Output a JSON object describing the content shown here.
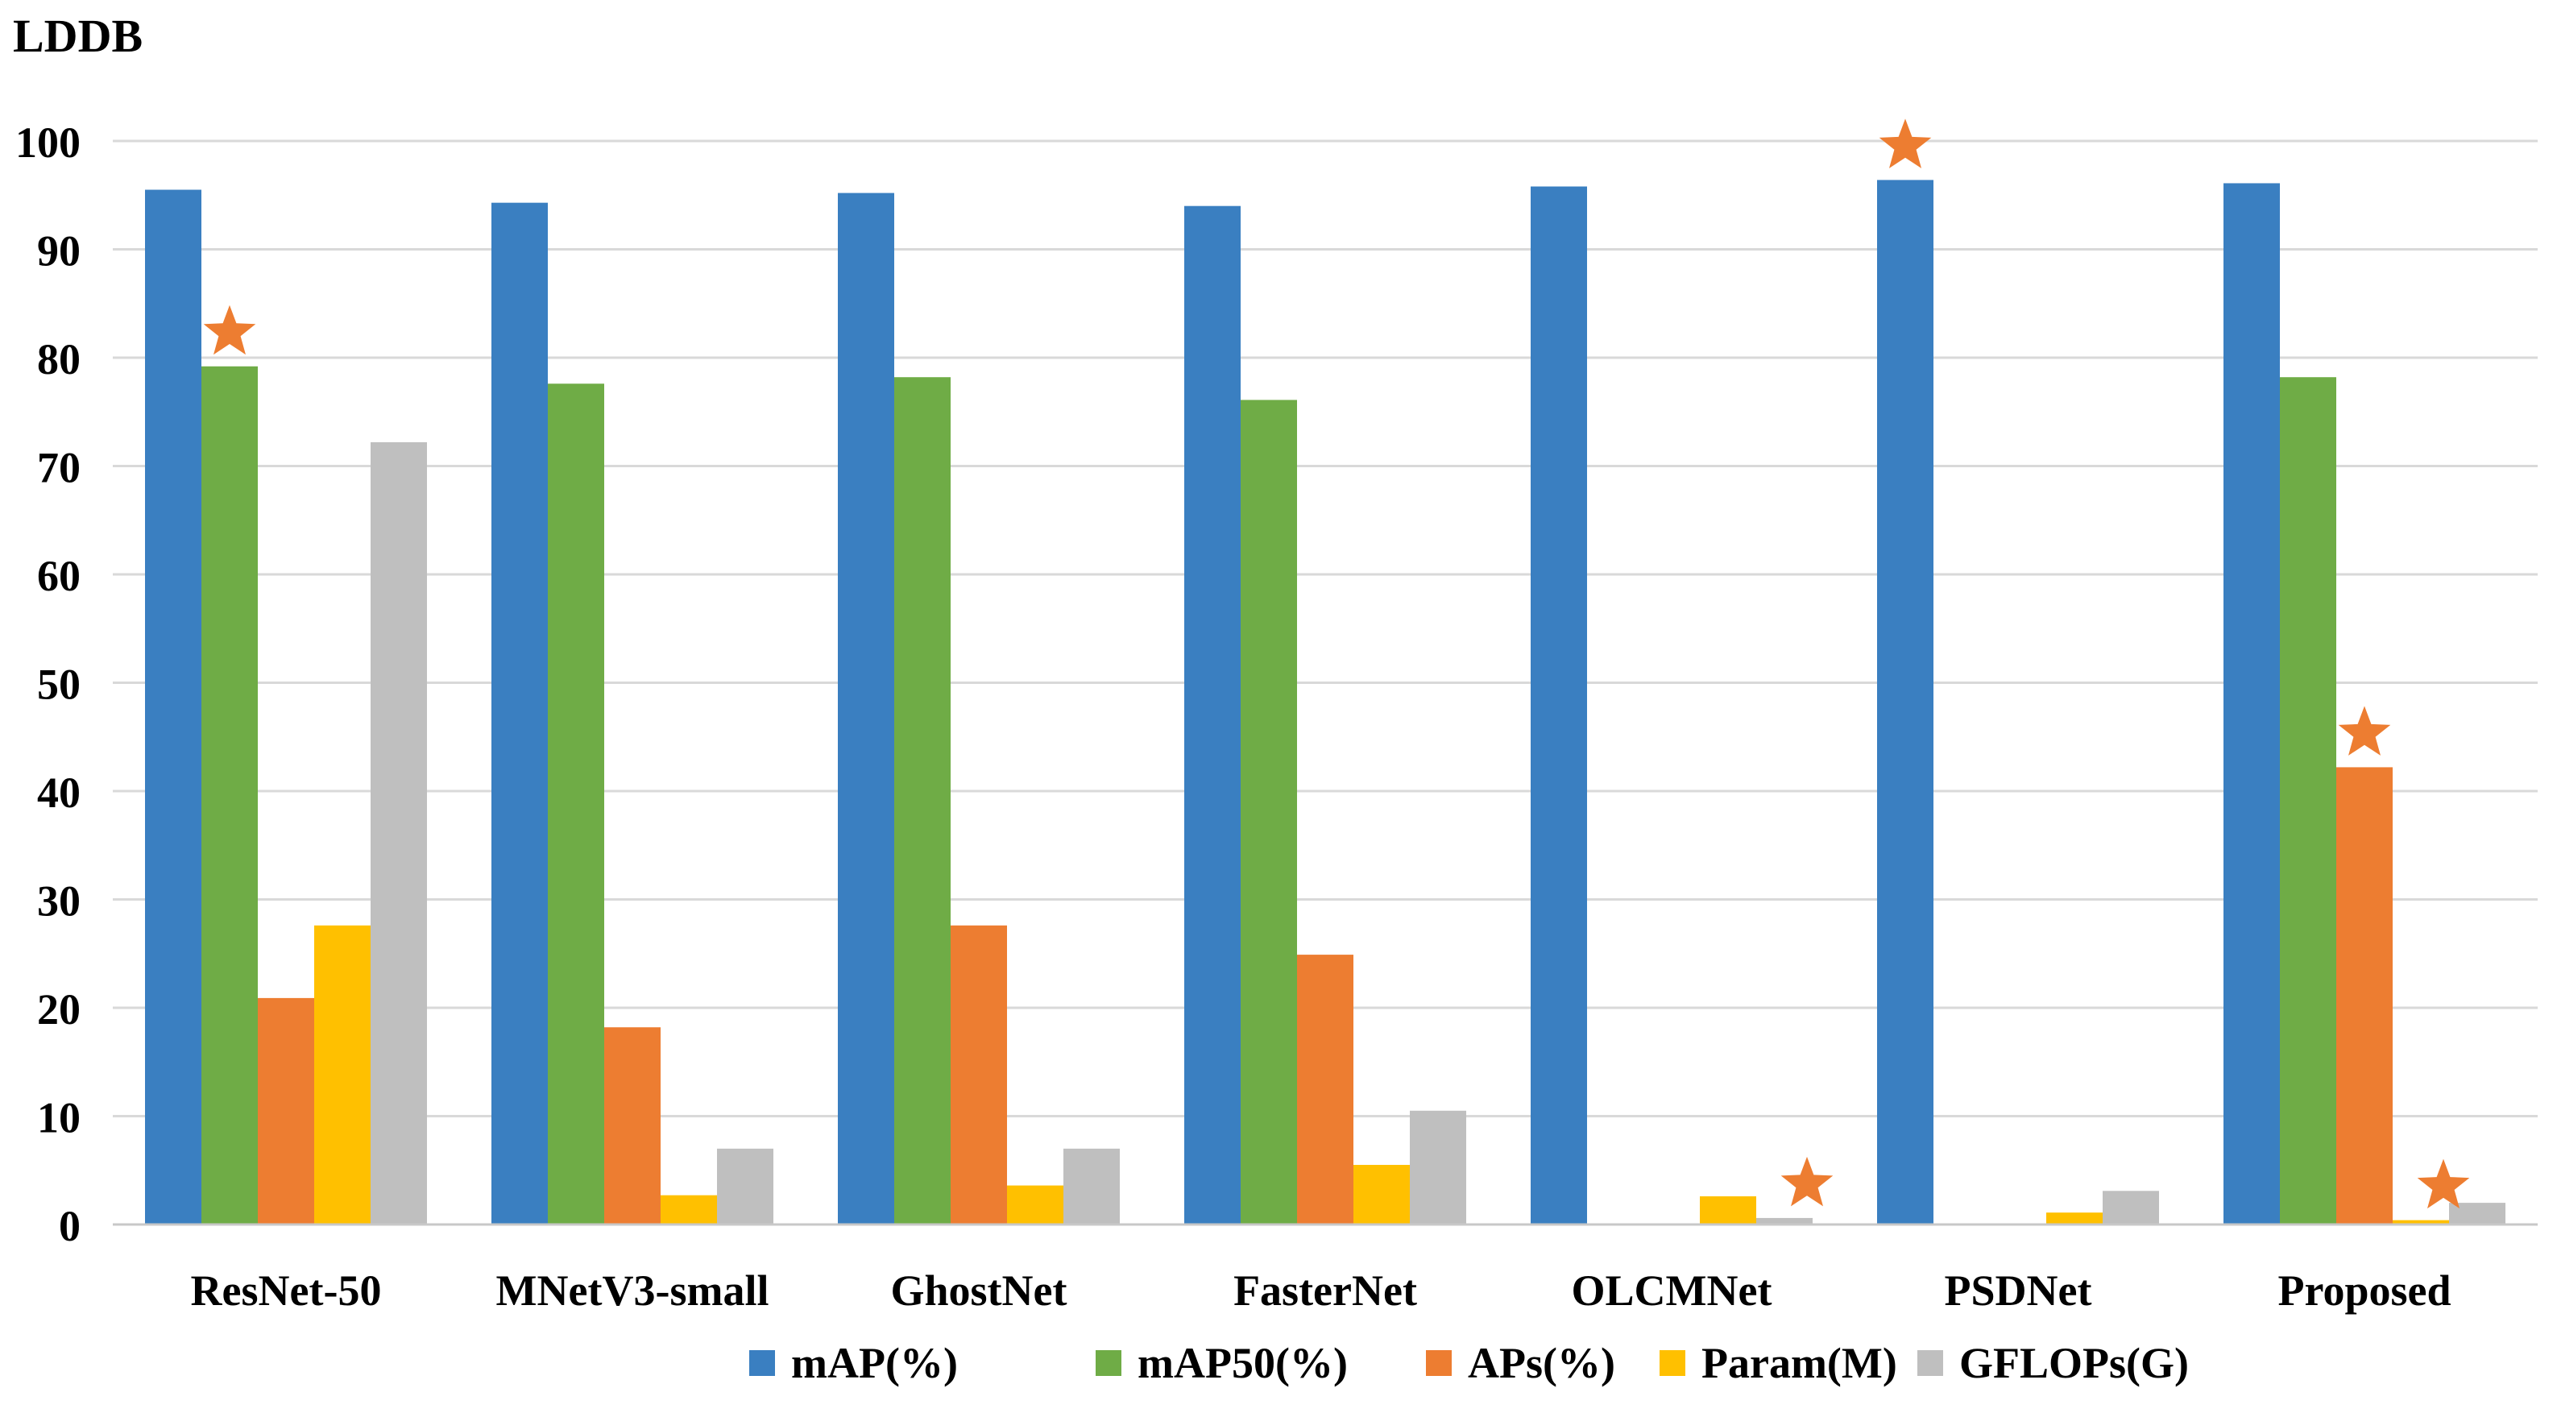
{
  "chart_data": {
    "type": "bar",
    "title": "LDDB",
    "xlabel": "",
    "ylabel": "",
    "ylim": [
      0,
      100
    ],
    "yticks": [
      0,
      10,
      20,
      30,
      40,
      50,
      60,
      70,
      80,
      90,
      100
    ],
    "grid": true,
    "legend_position": "bottom",
    "categories": [
      "ResNet-50",
      "MNetV3-small",
      "GhostNet",
      "FasterNet",
      "OLCMNet",
      "PSDNet",
      "Proposed"
    ],
    "series": [
      {
        "name": "mAP(%)",
        "color": "#3A7FC1",
        "values": [
          95.5,
          94.3,
          95.2,
          94.0,
          95.8,
          96.4,
          96.1
        ]
      },
      {
        "name": "mAP50(%)",
        "color": "#6FAC46",
        "values": [
          79.2,
          77.6,
          78.2,
          76.1,
          null,
          null,
          78.2
        ]
      },
      {
        "name": "APs(%)",
        "color": "#ED7D31",
        "values": [
          20.9,
          18.2,
          27.6,
          24.9,
          null,
          null,
          42.2
        ]
      },
      {
        "name": "Param(M)",
        "color": "#FFC000",
        "values": [
          27.6,
          2.7,
          3.6,
          5.5,
          2.6,
          1.1,
          0.4
        ]
      },
      {
        "name": "GFLOPs(G)",
        "color": "#BFBFBF",
        "values": [
          72.2,
          7.0,
          7.0,
          10.5,
          0.6,
          3.1,
          2.0
        ]
      }
    ],
    "annotations": [
      {
        "marker": "star",
        "color": "#ED7D31",
        "category": "ResNet-50",
        "series": "mAP50(%)"
      },
      {
        "marker": "star",
        "color": "#ED7D31",
        "category": "OLCMNet",
        "series": "GFLOPs(G)"
      },
      {
        "marker": "star",
        "color": "#ED7D31",
        "category": "PSDNet",
        "series": "mAP(%)"
      },
      {
        "marker": "star",
        "color": "#ED7D31",
        "category": "Proposed",
        "series": "APs(%)"
      },
      {
        "marker": "star",
        "color": "#ED7D31",
        "category": "Proposed",
        "series": "Param(M)"
      }
    ]
  }
}
